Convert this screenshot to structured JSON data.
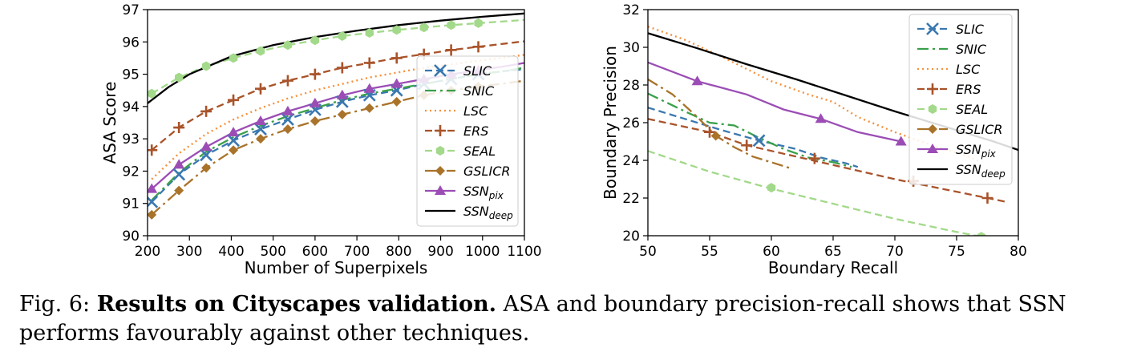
{
  "figure": {
    "label": "Fig. 6:",
    "title": "Results on Cityscapes validation.",
    "text": " ASA and boundary precision-recall shows that SSN performs favourably against other techniques."
  },
  "series_styles": [
    {
      "name": "SLIC",
      "sub": "",
      "color": "#3a78b0",
      "dash": "9,5",
      "marker": "x"
    },
    {
      "name": "SNIC",
      "sub": "",
      "color": "#3aa04a",
      "dash": "14,5,3,5",
      "marker": ""
    },
    {
      "name": "LSC",
      "sub": "",
      "color": "#f5913d",
      "dash": "2,4",
      "marker": ""
    },
    {
      "name": "ERS",
      "sub": "",
      "color": "#a9532a",
      "dash": "9,5",
      "marker": "plus"
    },
    {
      "name": "SEAL",
      "sub": "",
      "color": "#a3d98a",
      "dash": "9,5",
      "marker": "hexagon"
    },
    {
      "name": "GSLICR",
      "sub": "",
      "color": "#a9732a",
      "dash": "14,5,3,5",
      "marker": "diamond"
    },
    {
      "name": "SSN",
      "sub": "pix",
      "color": "#9b4db5",
      "dash": "",
      "marker": "triangle"
    },
    {
      "name": "SSN",
      "sub": "deep",
      "color": "#000000",
      "dash": "",
      "marker": ""
    }
  ],
  "chart_data": [
    {
      "type": "line",
      "xlabel": "Number of Superpixels",
      "ylabel": "ASA Score",
      "xlim": [
        200,
        1100
      ],
      "ylim": [
        90,
        97
      ],
      "xticks": [
        200,
        300,
        400,
        500,
        600,
        700,
        800,
        900,
        1000,
        1100
      ],
      "yticks": [
        90,
        91,
        92,
        93,
        94,
        95,
        96,
        97
      ],
      "legend": "bottom-right",
      "grid": false,
      "series": [
        {
          "name": "SLIC",
          "x": [
            210,
            275,
            340,
            405,
            470,
            535,
            600,
            665,
            730,
            795,
            860,
            925,
            990,
            1055,
            1100
          ],
          "y": [
            91.05,
            91.9,
            92.5,
            92.95,
            93.3,
            93.6,
            93.9,
            94.15,
            94.35,
            94.5,
            94.7,
            94.85,
            95.0,
            95.1,
            95.15
          ]
        },
        {
          "name": "SNIC",
          "x": [
            210,
            275,
            340,
            405,
            470,
            535,
            600,
            665,
            730,
            795,
            860,
            925,
            990,
            1055,
            1100
          ],
          "y": [
            91.1,
            91.95,
            92.6,
            93.05,
            93.4,
            93.7,
            93.95,
            94.2,
            94.4,
            94.55,
            94.7,
            94.85,
            95.0,
            95.1,
            95.2
          ]
        },
        {
          "name": "LSC",
          "x": [
            210,
            275,
            340,
            405,
            470,
            535,
            600,
            665,
            730,
            795,
            860,
            925,
            990,
            1055,
            1100
          ],
          "y": [
            91.75,
            92.55,
            93.15,
            93.6,
            93.95,
            94.25,
            94.5,
            94.7,
            94.9,
            95.05,
            95.2,
            95.3,
            95.42,
            95.52,
            95.6
          ]
        },
        {
          "name": "ERS",
          "x": [
            210,
            275,
            340,
            405,
            470,
            535,
            600,
            665,
            730,
            795,
            860,
            925,
            990,
            1055,
            1100
          ],
          "y": [
            92.65,
            93.35,
            93.85,
            94.2,
            94.55,
            94.8,
            95.0,
            95.2,
            95.35,
            95.5,
            95.62,
            95.75,
            95.85,
            95.95,
            96.02
          ]
        },
        {
          "name": "SEAL",
          "x": [
            210,
            275,
            340,
            405,
            470,
            535,
            600,
            665,
            730,
            795,
            860,
            925,
            990,
            1055,
            1100
          ],
          "y": [
            94.4,
            94.9,
            95.25,
            95.5,
            95.72,
            95.9,
            96.05,
            96.18,
            96.28,
            96.37,
            96.45,
            96.52,
            96.58,
            96.64,
            96.68
          ]
        },
        {
          "name": "GSLICR",
          "x": [
            210,
            275,
            340,
            405,
            470,
            535,
            600,
            665,
            730,
            795,
            860,
            925,
            990,
            1055,
            1100
          ],
          "y": [
            90.65,
            91.4,
            92.1,
            92.65,
            93.0,
            93.3,
            93.55,
            93.75,
            93.95,
            94.15,
            94.35,
            94.5,
            94.62,
            94.72,
            94.8
          ]
        },
        {
          "name": "SSN_pix",
          "x": [
            210,
            275,
            340,
            405,
            470,
            535,
            600,
            665,
            730,
            795,
            860,
            925,
            990,
            1055,
            1100
          ],
          "y": [
            91.45,
            92.2,
            92.75,
            93.2,
            93.55,
            93.85,
            94.1,
            94.35,
            94.55,
            94.7,
            94.85,
            95.0,
            95.12,
            95.25,
            95.35
          ]
        },
        {
          "name": "SSN_deep",
          "x": [
            200,
            250,
            300,
            400,
            500,
            600,
            700,
            800,
            900,
            1000,
            1100
          ],
          "y": [
            94.1,
            94.6,
            95.0,
            95.55,
            95.9,
            96.15,
            96.35,
            96.52,
            96.66,
            96.78,
            96.88
          ]
        }
      ]
    },
    {
      "type": "line",
      "xlabel": "Boundary Recall",
      "ylabel": "Boundary Precision",
      "xlim": [
        50,
        80
      ],
      "ylim": [
        20,
        32
      ],
      "xticks": [
        50,
        55,
        60,
        65,
        70,
        75,
        80
      ],
      "yticks": [
        20,
        22,
        24,
        26,
        28,
        30,
        32
      ],
      "legend": "top-right",
      "grid": false,
      "series": [
        {
          "name": "SLIC",
          "x": [
            50,
            52,
            54,
            56,
            59,
            62,
            64,
            66,
            67
          ],
          "y": [
            26.8,
            26.4,
            26.0,
            25.6,
            25.05,
            24.6,
            24.15,
            23.85,
            23.65
          ],
          "markers": [
            [
              59,
              25.05
            ]
          ]
        },
        {
          "name": "SNIC",
          "x": [
            50,
            53,
            55,
            57,
            59,
            61,
            63,
            65,
            66.5
          ],
          "y": [
            27.55,
            26.6,
            26.0,
            25.85,
            25.2,
            24.6,
            24.15,
            23.9,
            23.65
          ]
        },
        {
          "name": "LSC",
          "x": [
            50,
            53,
            56,
            60,
            63,
            65,
            67,
            70,
            73,
            76,
            77
          ],
          "y": [
            31.1,
            30.4,
            29.5,
            28.2,
            27.5,
            27.1,
            26.3,
            25.5,
            24.8,
            24.2,
            23.9
          ]
        },
        {
          "name": "ERS",
          "x": [
            50,
            55,
            58,
            62,
            66,
            70,
            73,
            76,
            79
          ],
          "y": [
            26.2,
            25.5,
            24.8,
            24.2,
            23.6,
            23.0,
            22.6,
            22.2,
            21.8
          ],
          "markers": [
            [
              55,
              25.5
            ],
            [
              58,
              24.8
            ],
            [
              63.5,
              24.1
            ],
            [
              71.5,
              22.9
            ],
            [
              77.5,
              22.0
            ]
          ]
        },
        {
          "name": "SEAL",
          "x": [
            50,
            55,
            60,
            65,
            70,
            75,
            77
          ],
          "y": [
            24.5,
            23.4,
            22.5,
            21.7,
            20.9,
            20.2,
            19.95
          ],
          "markers": [
            [
              60,
              22.55
            ],
            [
              77,
              19.95
            ]
          ]
        },
        {
          "name": "GSLICR",
          "x": [
            50,
            52,
            54,
            55.5,
            57,
            58.5,
            60,
            61.7
          ],
          "y": [
            28.3,
            27.5,
            26.3,
            25.3,
            24.7,
            24.2,
            23.9,
            23.55
          ],
          "markers": [
            [
              55.5,
              25.3
            ]
          ]
        },
        {
          "name": "SSN_pix",
          "x": [
            50,
            54,
            58,
            61,
            64,
            67,
            70.5
          ],
          "y": [
            29.2,
            28.2,
            27.5,
            26.7,
            26.2,
            25.5,
            25.0
          ],
          "markers": [
            [
              54,
              28.2
            ],
            [
              64,
              26.2
            ],
            [
              70.5,
              25.0
            ]
          ]
        },
        {
          "name": "SSN_deep",
          "x": [
            50,
            54,
            58,
            62,
            66,
            70,
            74,
            78,
            80
          ],
          "y": [
            30.75,
            29.95,
            29.1,
            28.3,
            27.45,
            26.6,
            25.8,
            25.0,
            24.55
          ]
        }
      ]
    }
  ]
}
